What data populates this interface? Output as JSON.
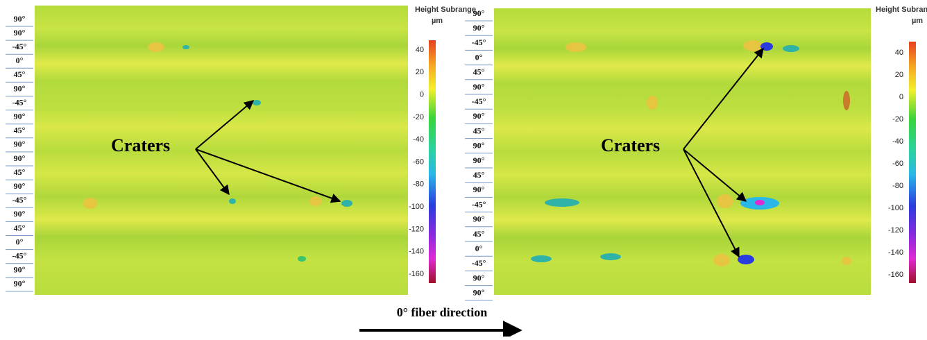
{
  "left_panel": {
    "ply_labels": [
      "90°",
      "90°",
      "-45°",
      "0°",
      "45°",
      "90°",
      "-45°",
      "90°",
      "45°",
      "90°",
      "90°",
      "45°",
      "90°",
      "-45°",
      "90°",
      "45°",
      "0°",
      "-45°",
      "90°",
      "90°"
    ],
    "colorbar": {
      "title": "Height Subrange",
      "unit": "µm",
      "ticks": [
        40,
        20,
        0,
        -20,
        -40,
        -60,
        -80,
        -100,
        -120,
        -140,
        -160
      ]
    },
    "annotation": "Craters"
  },
  "right_panel": {
    "ply_labels": [
      "90°",
      "90°",
      "-45°",
      "0°",
      "45°",
      "90°",
      "-45°",
      "90°",
      "45°",
      "90°",
      "90°",
      "45°",
      "90°",
      "-45°",
      "90°",
      "45°",
      "0°",
      "-45°",
      "90°",
      "90°"
    ],
    "colorbar": {
      "title": "Height Subrange",
      "unit": "µm",
      "ticks": [
        40,
        20,
        0,
        -20,
        -40,
        -60,
        -80,
        -100,
        -120,
        -140,
        -160
      ]
    },
    "annotation": "Craters"
  },
  "caption": "0° fiber direction"
}
